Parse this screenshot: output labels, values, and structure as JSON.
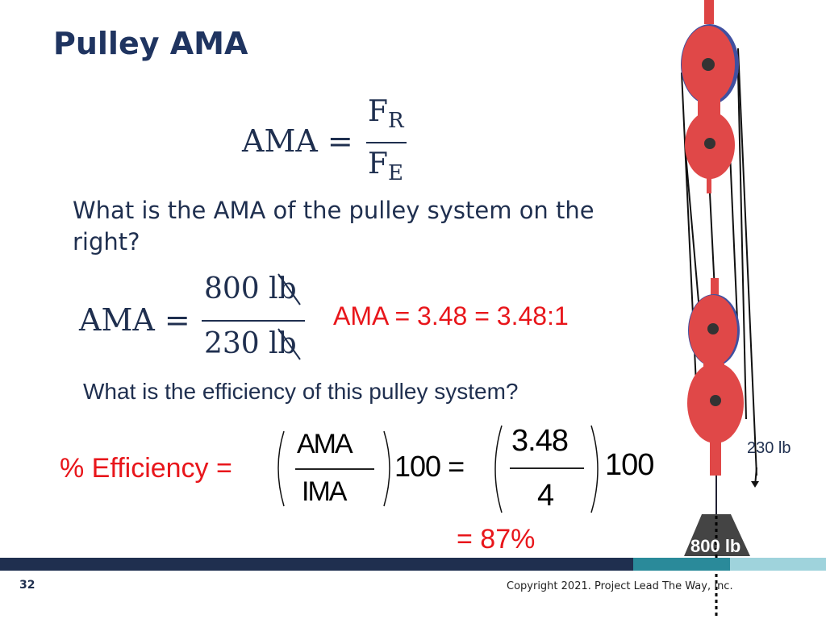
{
  "title": "Pulley AMA",
  "formula": {
    "lhs": "AMA =",
    "numerator": "F",
    "numerator_sub": "R",
    "denominator": "F",
    "denominator_sub": "E"
  },
  "question1": "What is the AMA of the pulley system on the right?",
  "calc1": {
    "lhs": "AMA =",
    "numerator": "800 lb",
    "denominator": "230 lb",
    "result": "AMA = 3.48 = 3.48:1"
  },
  "question2": "What is the efficiency of this pulley system?",
  "calc2": {
    "lhs": "% Efficiency =",
    "fraction1_numerator": "AMA",
    "fraction1_denominator": "IMA",
    "multiplier1": "100 =",
    "fraction2_numerator": "3.48",
    "fraction2_denominator": "4",
    "multiplier2": "100",
    "result": "= 87%"
  },
  "figure": {
    "effort_label": "230 lb",
    "load_label": "800 lb"
  },
  "footer": {
    "page_number": "32",
    "copyright": "Copyright 2021. Project Lead The Way, Inc."
  }
}
